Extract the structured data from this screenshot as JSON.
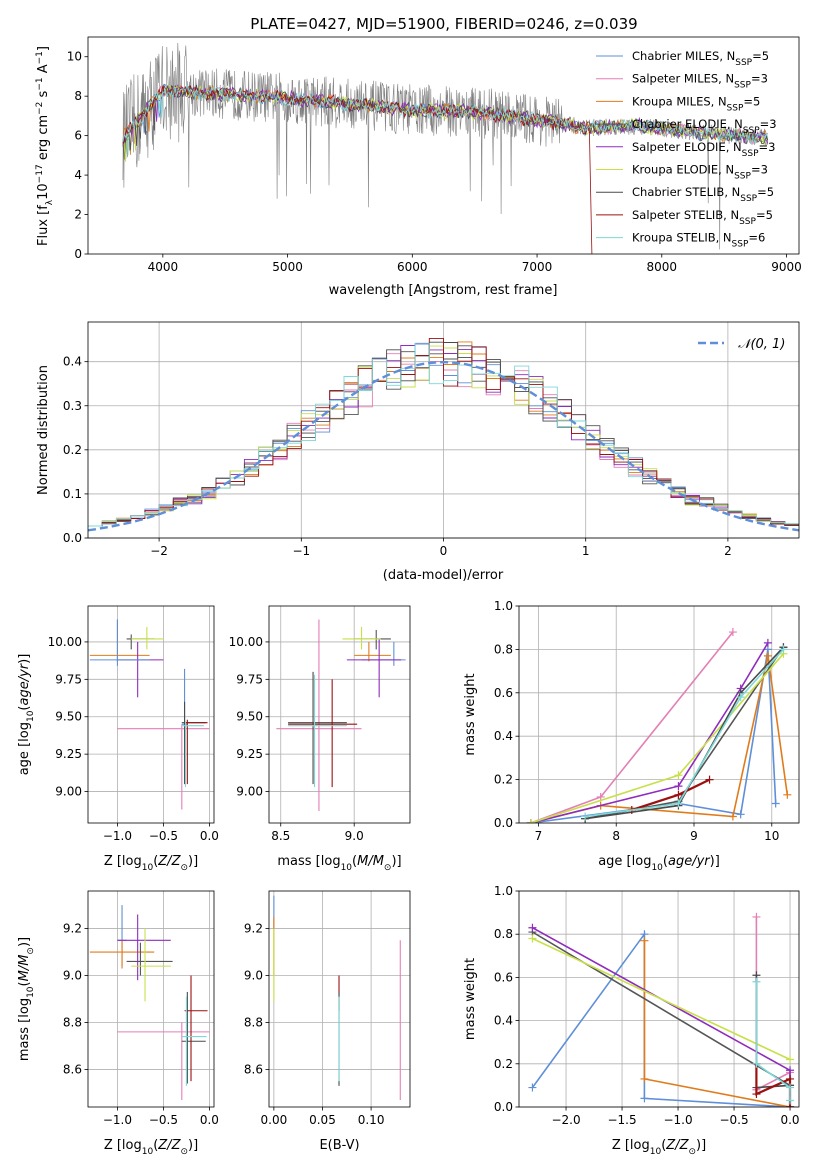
{
  "figure": {
    "title": "PLATE=0427, MJD=51900, FIBERID=0246, z=0.039"
  },
  "series": [
    {
      "key": "chab_miles",
      "name": "Chabrier MILES, N",
      "nssp": "=5",
      "color": "#5f8fd8"
    },
    {
      "key": "salp_miles",
      "name": "Salpeter MILES, N",
      "nssp": "=3",
      "color": "#e37fb5"
    },
    {
      "key": "krou_miles",
      "name": "Kroupa MILES, N",
      "nssp": "=5",
      "color": "#e07b1c"
    },
    {
      "key": "chab_elodie",
      "name": "Chabrier ELODIE, N",
      "nssp": "=3",
      "color": "#555555"
    },
    {
      "key": "salp_elodie",
      "name": "Salpeter ELODIE, N",
      "nssp": "=3",
      "color": "#8f2bbd"
    },
    {
      "key": "krou_elodie",
      "name": "Kroupa ELODIE, N",
      "nssp": "=3",
      "color": "#c7e04a"
    },
    {
      "key": "chab_stelib",
      "name": "Chabrier STELIB, N",
      "nssp": "=5",
      "color": "#4a4a4a"
    },
    {
      "key": "salp_stelib",
      "name": "Salpeter STELIB, N",
      "nssp": "=5",
      "color": "#9b1111"
    },
    {
      "key": "krou_stelib",
      "name": "Kroupa STELIB, N",
      "nssp": "=6",
      "color": "#7dd8d8"
    }
  ],
  "nssp_sub": "SSP",
  "chart_data": [
    {
      "id": "spectrum",
      "type": "line",
      "xlabel": "wavelength [Angstrom, rest frame]",
      "ylabel_parts": [
        "Flux [f",
        "λ",
        "10",
        "−17",
        " erg cm",
        "−2",
        " s",
        "−1",
        " A",
        "−1",
        "]"
      ],
      "xlim": [
        3400,
        9100
      ],
      "ylim": [
        0,
        11
      ],
      "xticks": [
        4000,
        5000,
        6000,
        7000,
        8000,
        9000
      ],
      "yticks": [
        0,
        2,
        4,
        6,
        8,
        10
      ],
      "data_x": [
        3700,
        4000,
        4500,
        5000,
        5500,
        6000,
        6500,
        7000,
        7400,
        7800,
        8200,
        8600,
        8800
      ],
      "data_y": [
        6.0,
        8.3,
        8.1,
        7.9,
        7.6,
        7.3,
        7.2,
        6.8,
        6.4,
        6.5,
        6.2,
        6.0,
        5.9
      ],
      "observed_color": "#808080"
    },
    {
      "id": "residuals",
      "type": "histogram",
      "xlabel": "(data-model)/error",
      "ylabel": "Normed distribution",
      "xlim": [
        -2.5,
        2.5
      ],
      "ylim": [
        0,
        0.49
      ],
      "xticks": [
        -2,
        -1,
        0,
        1,
        2
      ],
      "yticks": [
        0.0,
        0.1,
        0.2,
        0.3,
        0.4
      ],
      "legend": "𝒩(0, 1)",
      "normal_color": "#5f8fd8",
      "bin_width": 0.1
    },
    {
      "id": "age_vs_z",
      "type": "errorbar",
      "xlabel": "Z [log10(Z/Z⊙)]",
      "ylabel": "age  [log10(age/yr)]",
      "xlim": [
        -1.32,
        0.05
      ],
      "ylim": [
        8.79,
        10.24
      ],
      "xticks": [
        -1.0,
        -0.5,
        0.0
      ],
      "yticks": [
        9.0,
        9.25,
        9.5,
        9.75,
        10.0
      ],
      "points": [
        {
          "s": "chab_miles",
          "x": -0.27,
          "y": 9.45,
          "xlo": -0.3,
          "xhi": -0.24,
          "ylo": 9.05,
          "yhi": 9.82
        },
        {
          "s": "salp_miles",
          "x": -0.3,
          "y": 9.42,
          "xlo": -1.0,
          "xhi": 0.0,
          "ylo": 8.88,
          "yhi": 9.45
        },
        {
          "s": "krou_miles",
          "x": -1.0,
          "y": 9.91,
          "xlo": -1.3,
          "xhi": -0.65,
          "ylo": 9.87,
          "yhi": 10.15
        },
        {
          "s": "chab_elodie",
          "x": -0.85,
          "y": 10.02,
          "xlo": -0.9,
          "xhi": -0.6,
          "ylo": 9.95,
          "yhi": 10.05
        },
        {
          "s": "salp_elodie",
          "x": -0.78,
          "y": 9.88,
          "xlo": -1.0,
          "xhi": -0.5,
          "ylo": 9.63,
          "yhi": 10.0
        },
        {
          "s": "krou_elodie",
          "x": -0.68,
          "y": 10.02,
          "xlo": -0.85,
          "xhi": -0.5,
          "ylo": 9.95,
          "yhi": 10.1
        },
        {
          "s": "chab_stelib",
          "x": -0.27,
          "y": 9.46,
          "xlo": -0.3,
          "xhi": -0.04,
          "ylo": 9.05,
          "yhi": 9.6
        },
        {
          "s": "salp_stelib",
          "x": -0.24,
          "y": 9.46,
          "xlo": -0.27,
          "xhi": -0.02,
          "ylo": 9.05,
          "yhi": 9.48
        },
        {
          "s": "krou_stelib",
          "x": -0.26,
          "y": 9.44,
          "xlo": -0.3,
          "xhi": -0.06,
          "ylo": 9.03,
          "yhi": 9.47
        },
        {
          "s": "chab_miles",
          "x": -1.0,
          "y": 9.88,
          "xlo": -1.3,
          "xhi": -0.65,
          "ylo": 9.84,
          "yhi": 10.15
        }
      ]
    },
    {
      "id": "age_vs_mass",
      "type": "errorbar",
      "xlabel": "mass [log10(M/M⊙)]",
      "ylabel": "",
      "xlim": [
        8.42,
        9.38
      ],
      "ylim": [
        8.79,
        10.24
      ],
      "xticks": [
        8.5,
        9.0
      ],
      "yticks": [
        9.0,
        9.25,
        9.5,
        9.75,
        10.0
      ],
      "points": [
        {
          "s": "chab_miles",
          "x": 9.27,
          "y": 9.88,
          "xlo": 9.05,
          "xhi": 9.35,
          "ylo": 9.84,
          "yhi": 10.0
        },
        {
          "s": "salp_miles",
          "x": 8.76,
          "y": 9.42,
          "xlo": 8.47,
          "xhi": 9.05,
          "ylo": 8.87,
          "yhi": 10.15
        },
        {
          "s": "krou_miles",
          "x": 9.1,
          "y": 9.91,
          "xlo": 9.0,
          "xhi": 9.25,
          "ylo": 9.87,
          "yhi": 10.0
        },
        {
          "s": "chab_elodie",
          "x": 9.15,
          "y": 10.02,
          "xlo": 9.0,
          "xhi": 9.25,
          "ylo": 9.95,
          "yhi": 10.08
        },
        {
          "s": "salp_elodie",
          "x": 9.17,
          "y": 9.88,
          "xlo": 8.95,
          "xhi": 9.32,
          "ylo": 9.63,
          "yhi": 10.02
        },
        {
          "s": "krou_elodie",
          "x": 9.05,
          "y": 10.02,
          "xlo": 8.92,
          "xhi": 9.18,
          "ylo": 9.95,
          "yhi": 10.1
        },
        {
          "s": "chab_stelib",
          "x": 8.72,
          "y": 9.46,
          "xlo": 8.55,
          "xhi": 8.95,
          "ylo": 9.05,
          "yhi": 9.8
        },
        {
          "s": "salp_stelib",
          "x": 8.85,
          "y": 9.45,
          "xlo": 8.55,
          "xhi": 9.02,
          "ylo": 9.03,
          "yhi": 9.75
        },
        {
          "s": "krou_stelib",
          "x": 8.73,
          "y": 9.44,
          "xlo": 8.55,
          "xhi": 8.95,
          "ylo": 9.03,
          "yhi": 9.78
        }
      ]
    },
    {
      "id": "weight_vs_age",
      "type": "line",
      "xlabel": "age  [log10(age/yr)]",
      "ylabel": "mass weight",
      "xlim": [
        6.75,
        10.35
      ],
      "ylim": [
        0,
        1.0
      ],
      "xticks": [
        7,
        8,
        9,
        10
      ],
      "yticks": [
        0.0,
        0.2,
        0.4,
        0.6,
        0.8,
        1.0
      ],
      "lines": [
        {
          "s": "chab_miles",
          "x": [
            6.9,
            8.8,
            9.6,
            9.95,
            10.05
          ],
          "y": [
            0.0,
            0.09,
            0.04,
            0.8,
            0.09
          ]
        },
        {
          "s": "salp_miles",
          "x": [
            6.9,
            7.8,
            9.5
          ],
          "y": [
            0.0,
            0.12,
            0.88
          ]
        },
        {
          "s": "krou_miles",
          "x": [
            6.9,
            7.8,
            9.5,
            9.95,
            10.2
          ],
          "y": [
            0.0,
            0.08,
            0.03,
            0.77,
            0.13
          ]
        },
        {
          "s": "chab_elodie",
          "x": [
            7.6,
            8.8,
            10.15
          ],
          "y": [
            0.02,
            0.1,
            0.81
          ]
        },
        {
          "s": "salp_elodie",
          "x": [
            6.9,
            8.8,
            9.6,
            9.95
          ],
          "y": [
            0.0,
            0.17,
            0.62,
            0.83
          ]
        },
        {
          "s": "krou_elodie",
          "x": [
            6.9,
            8.8,
            10.15
          ],
          "y": [
            0.0,
            0.22,
            0.78
          ]
        },
        {
          "s": "chab_stelib",
          "x": [
            7.6,
            8.8,
            9.6,
            10.15
          ],
          "y": [
            0.02,
            0.08,
            0.6,
            0.81
          ]
        },
        {
          "s": "salp_stelib",
          "x": [
            8.2,
            8.8,
            9.2
          ],
          "y": [
            0.06,
            0.13,
            0.2
          ]
        },
        {
          "s": "krou_stelib",
          "x": [
            7.6,
            8.8,
            9.6,
            10.15
          ],
          "y": [
            0.03,
            0.09,
            0.58,
            0.8
          ]
        }
      ]
    },
    {
      "id": "mass_vs_z",
      "type": "errorbar",
      "xlabel": "Z [log10(Z/Z⊙)]",
      "ylabel": "mass [log10(M/M⊙)]",
      "xlim": [
        -1.32,
        0.05
      ],
      "ylim": [
        8.44,
        9.36
      ],
      "xticks": [
        -1.0,
        -0.5,
        0.0
      ],
      "yticks": [
        8.6,
        8.8,
        9.0,
        9.2
      ],
      "points": [
        {
          "s": "chab_miles",
          "x": -0.95,
          "y": 9.15,
          "xlo": -1.0,
          "xhi": -0.9,
          "ylo": 9.04,
          "yhi": 9.3
        },
        {
          "s": "salp_miles",
          "x": -0.3,
          "y": 8.76,
          "xlo": -1.0,
          "xhi": 0.0,
          "ylo": 8.47,
          "yhi": 8.8
        },
        {
          "s": "krou_miles",
          "x": -0.95,
          "y": 9.1,
          "xlo": -1.3,
          "xhi": -0.6,
          "ylo": 9.03,
          "yhi": 9.15
        },
        {
          "s": "chab_elodie",
          "x": -0.75,
          "y": 9.06,
          "xlo": -0.9,
          "xhi": -0.4,
          "ylo": 9.0,
          "yhi": 9.14
        },
        {
          "s": "salp_elodie",
          "x": -0.78,
          "y": 9.15,
          "xlo": -1.0,
          "xhi": -0.42,
          "ylo": 8.98,
          "yhi": 9.26
        },
        {
          "s": "krou_elodie",
          "x": -0.7,
          "y": 9.04,
          "xlo": -0.85,
          "xhi": -0.42,
          "ylo": 8.89,
          "yhi": 9.2
        },
        {
          "s": "chab_stelib",
          "x": -0.24,
          "y": 8.72,
          "xlo": -0.3,
          "xhi": -0.04,
          "ylo": 8.54,
          "yhi": 8.93
        },
        {
          "s": "salp_stelib",
          "x": -0.2,
          "y": 8.85,
          "xlo": -0.27,
          "xhi": -0.02,
          "ylo": 8.55,
          "yhi": 9.0
        },
        {
          "s": "krou_stelib",
          "x": -0.25,
          "y": 8.74,
          "xlo": -0.3,
          "xhi": -0.03,
          "ylo": 8.53,
          "yhi": 8.91
        }
      ]
    },
    {
      "id": "mass_vs_ebv",
      "type": "errorbar",
      "xlabel": "E(B-V)",
      "ylabel": "",
      "xlim": [
        -0.005,
        0.14
      ],
      "ylim": [
        8.44,
        9.36
      ],
      "xticks": [
        0.0,
        0.05,
        0.1
      ],
      "yticks": [
        8.6,
        8.8,
        9.0,
        9.2
      ],
      "points": [
        {
          "s": "chab_miles",
          "x": 0.0,
          "y": 9.27,
          "xlo": 0.0,
          "xhi": 0.0,
          "ylo": 9.2,
          "yhi": 9.34
        },
        {
          "s": "salp_miles",
          "x": 0.13,
          "y": 8.76,
          "xlo": 0.13,
          "xhi": 0.13,
          "ylo": 8.47,
          "yhi": 9.15
        },
        {
          "s": "krou_miles",
          "x": 0.0,
          "y": 9.1,
          "xlo": 0.0,
          "xhi": 0.0,
          "ylo": 9.0,
          "yhi": 9.25
        },
        {
          "s": "krou_elodie",
          "x": 0.0,
          "y": 9.04,
          "xlo": 0.0,
          "xhi": 0.0,
          "ylo": 8.89,
          "yhi": 9.2
        },
        {
          "s": "salp_stelib",
          "x": 0.067,
          "y": 8.95,
          "xlo": 0.067,
          "xhi": 0.067,
          "ylo": 8.85,
          "yhi": 9.0
        },
        {
          "s": "chab_stelib",
          "x": 0.067,
          "y": 8.72,
          "xlo": 0.067,
          "xhi": 0.067,
          "ylo": 8.53,
          "yhi": 8.93
        },
        {
          "s": "krou_stelib",
          "x": 0.067,
          "y": 8.74,
          "xlo": 0.067,
          "xhi": 0.067,
          "ylo": 8.55,
          "yhi": 8.91
        }
      ]
    },
    {
      "id": "weight_vs_z",
      "type": "line",
      "xlabel": "Z [log10(Z/Z⊙)]",
      "ylabel": "mass weight",
      "xlim": [
        -2.42,
        0.08
      ],
      "ylim": [
        0,
        1.0
      ],
      "xticks": [
        -2.0,
        -1.5,
        -1.0,
        -0.5,
        0.0
      ],
      "yticks": [
        0.0,
        0.2,
        0.4,
        0.6,
        0.8,
        1.0
      ],
      "lines": [
        {
          "s": "chab_miles",
          "x": [
            -2.3,
            -1.3,
            -1.3,
            0.0
          ],
          "y": [
            0.09,
            0.8,
            0.04,
            0.0
          ]
        },
        {
          "s": "salp_miles",
          "x": [
            -0.3,
            -0.3,
            0.0,
            0.0
          ],
          "y": [
            0.88,
            0.08,
            0.16,
            0.0
          ]
        },
        {
          "s": "krou_miles",
          "x": [
            -1.3,
            -1.3,
            0.0
          ],
          "y": [
            0.77,
            0.13,
            0.0
          ]
        },
        {
          "s": "chab_elodie",
          "x": [
            -2.3,
            0.0,
            0.0
          ],
          "y": [
            0.81,
            0.1,
            0.0
          ]
        },
        {
          "s": "salp_elodie",
          "x": [
            -2.3,
            0.0,
            0.0
          ],
          "y": [
            0.83,
            0.17,
            0.0
          ]
        },
        {
          "s": "krou_elodie",
          "x": [
            -2.3,
            0.0
          ],
          "y": [
            0.78,
            0.22
          ]
        },
        {
          "s": "chab_stelib",
          "x": [
            -0.3,
            -0.3,
            0.0,
            0.0
          ],
          "y": [
            0.61,
            0.09,
            0.1,
            0.0
          ]
        },
        {
          "s": "salp_stelib",
          "x": [
            -0.3,
            -0.3,
            0.0,
            0.0
          ],
          "y": [
            0.2,
            0.06,
            0.13,
            0.0
          ]
        },
        {
          "s": "krou_stelib",
          "x": [
            -0.3,
            -0.3,
            0.0,
            0.0
          ],
          "y": [
            0.58,
            0.2,
            0.09,
            0.03
          ]
        }
      ]
    }
  ]
}
